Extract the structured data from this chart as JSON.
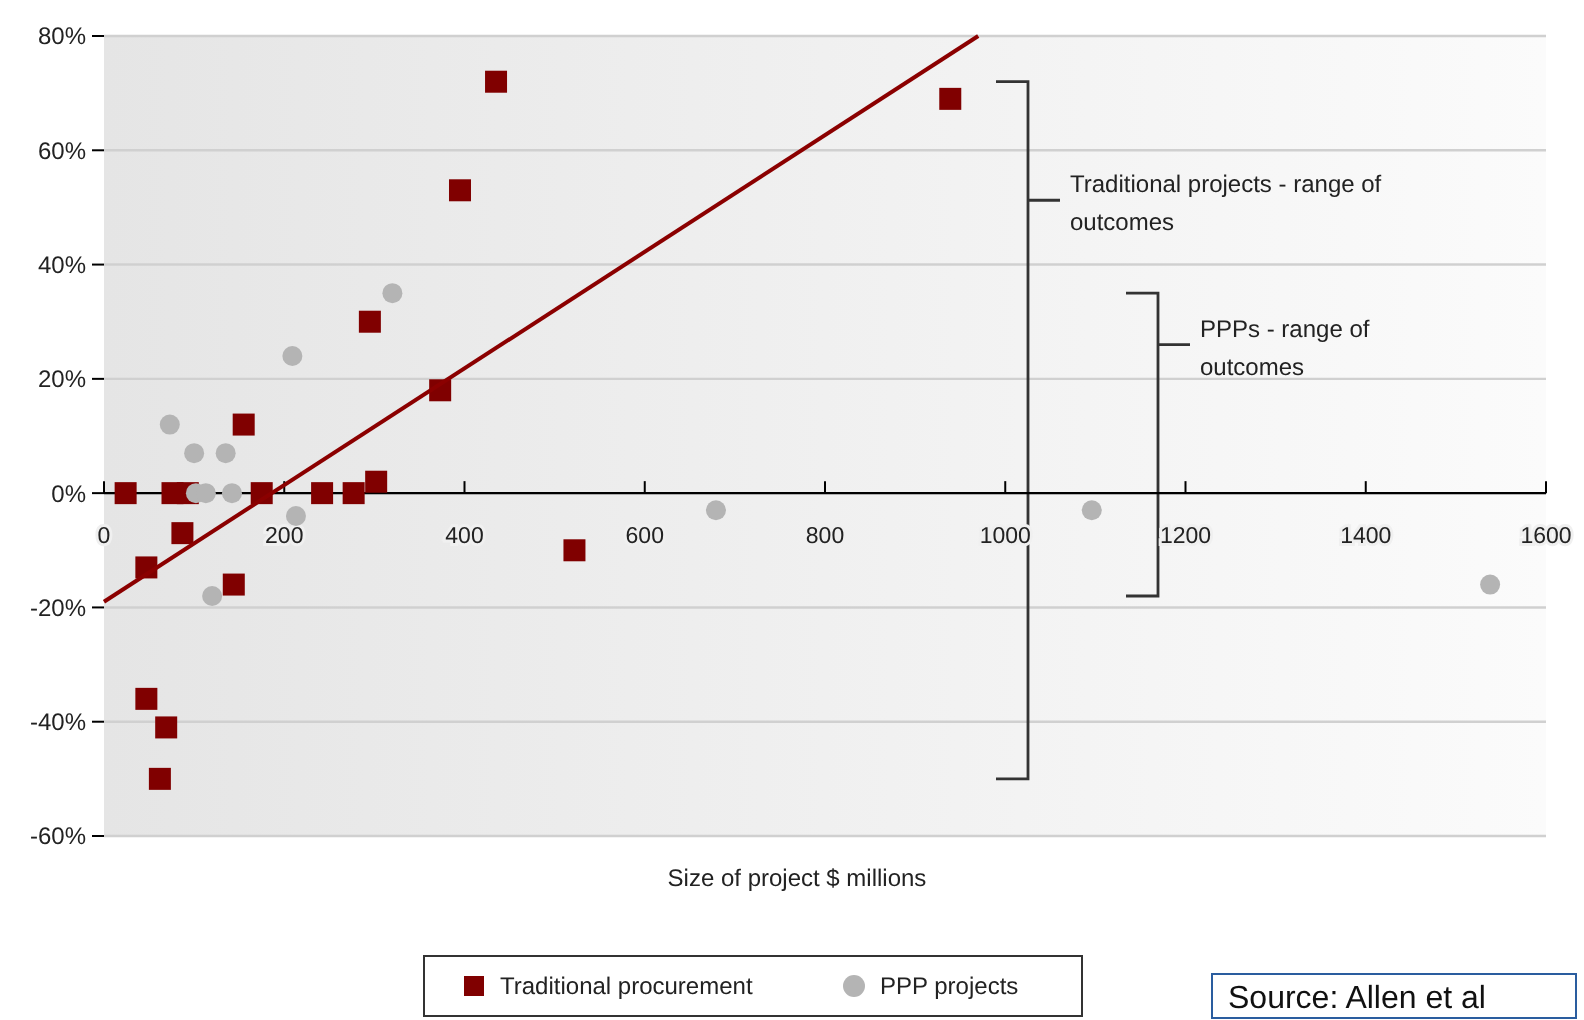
{
  "chart_data": {
    "type": "scatter",
    "xlabel": "Size of project $ millions",
    "xlim": [
      0,
      1600
    ],
    "xticks": [
      0,
      200,
      400,
      600,
      800,
      1000,
      1200,
      1400,
      1600
    ],
    "ylim": [
      -60,
      80
    ],
    "yticks": [
      {
        "value": -60,
        "label": "-60%"
      },
      {
        "value": -40,
        "label": "-40%"
      },
      {
        "value": -20,
        "label": "-20%"
      },
      {
        "value": 0,
        "label": "0%"
      },
      {
        "value": 20,
        "label": "20%"
      },
      {
        "value": 40,
        "label": "40%"
      },
      {
        "value": 60,
        "label": "60%"
      },
      {
        "value": 80,
        "label": "80%"
      }
    ],
    "grid": "y",
    "legend": "bottom",
    "series": [
      {
        "name": "Traditional procurement",
        "marker": "square",
        "color": "#800000",
        "x": [
          24,
          47,
          76,
          93,
          87,
          155,
          144,
          175,
          242,
          277,
          302,
          373,
          295,
          522,
          435,
          395,
          939,
          47,
          69,
          62
        ],
        "values": [
          0,
          -13,
          0,
          0,
          -7,
          12,
          -16,
          0,
          0,
          0,
          2,
          18,
          30,
          -10,
          72,
          53,
          69,
          -36,
          -41,
          -50
        ]
      },
      {
        "name": "PPP projects",
        "marker": "circle",
        "color": "#b4b4b4",
        "x": [
          320,
          209,
          73,
          100,
          135,
          102,
          113,
          142,
          213,
          120,
          679,
          1096,
          1538
        ],
        "values": [
          35,
          24,
          12,
          7,
          7,
          0,
          0,
          0,
          -4,
          -18,
          -3,
          -3,
          -16
        ]
      },
      {
        "type": "line",
        "color": "#8b0000",
        "x": [
          0,
          970
        ],
        "values": [
          -19,
          80
        ]
      }
    ],
    "annotations": [
      "Traditional projects - range of outcomes",
      "PPPs - range of outcomes",
      "Source: Allen et al"
    ]
  }
}
